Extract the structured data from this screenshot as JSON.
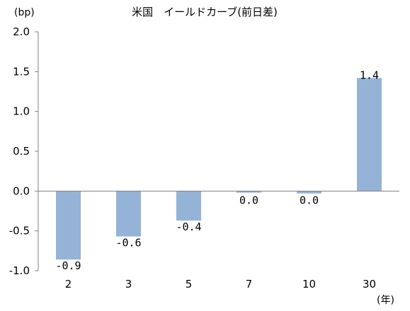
{
  "chart_data": {
    "type": "bar",
    "title": "米国　イールドカーブ(前日差)",
    "ylabel": "(bp)",
    "xlabel": "(年)",
    "categories": [
      "2",
      "3",
      "5",
      "7",
      "10",
      "30"
    ],
    "values": [
      -0.86,
      -0.57,
      -0.37,
      -0.02,
      -0.03,
      1.42
    ],
    "data_labels": [
      "-0.9",
      "-0.6",
      "-0.4",
      "0.0",
      "0.0",
      "1.4"
    ],
    "ylim": [
      -1.0,
      2.0
    ],
    "yticks": [
      "2.0",
      "1.5",
      "1.0",
      "0.5",
      "0.0",
      "-0.5",
      "-1.0"
    ],
    "ytick_values": [
      2.0,
      1.5,
      1.0,
      0.5,
      0.0,
      -0.5,
      -1.0
    ],
    "bar_color": "#95b3d7",
    "axis_color": "#808080",
    "grid": false,
    "legend": "none"
  }
}
